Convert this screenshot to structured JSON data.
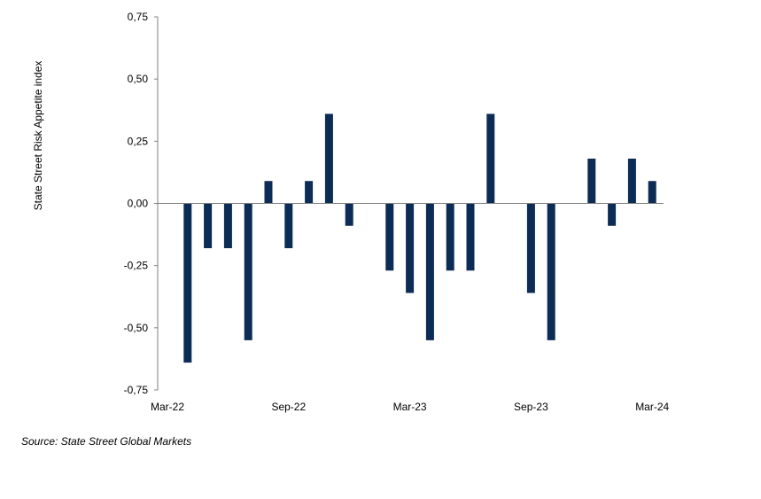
{
  "chart_data": {
    "type": "bar",
    "ylabel": "State Street Risk Appetite index",
    "ylim": [
      -0.75,
      0.75
    ],
    "yticks": [
      "0,75",
      "0,50",
      "0,25",
      "0,00",
      "-0,25",
      "-0,50",
      "-0,75"
    ],
    "ytick_values": [
      0.75,
      0.5,
      0.25,
      0,
      -0.25,
      -0.5,
      -0.75
    ],
    "x_tick_labels": [
      "Mar-22",
      "Sep-22",
      "Mar-23",
      "Sep-23",
      "Mar-24"
    ],
    "x_tick_positions": [
      0,
      6,
      12,
      18,
      24
    ],
    "values": [
      -0.64,
      -0.18,
      -0.18,
      -0.55,
      0.09,
      -0.18,
      0.09,
      0.36,
      -0.09,
      null,
      -0.27,
      -0.36,
      -0.55,
      -0.27,
      -0.27,
      0.36,
      null,
      -0.36,
      -0.55,
      null,
      0.18,
      -0.09,
      0.18,
      0.09
    ],
    "bar_color": "#0c2c56",
    "grid": false,
    "legend": "none"
  },
  "source": "Source: State Street Global Markets"
}
